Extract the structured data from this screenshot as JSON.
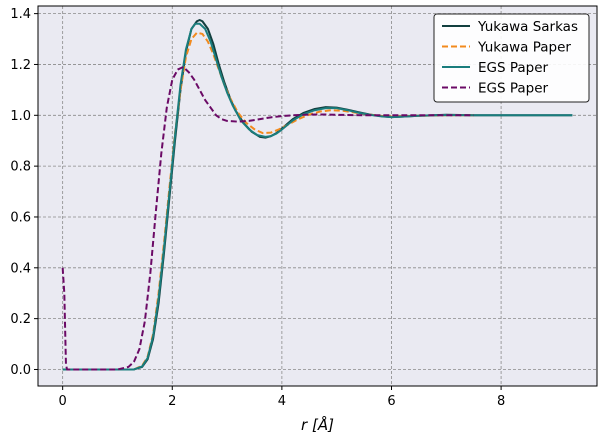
{
  "chart_data": {
    "type": "line",
    "title": "",
    "xlabel": "r [Å]",
    "ylabel": "",
    "xlim": [
      -0.45,
      9.75
    ],
    "ylim": [
      -0.065,
      1.43
    ],
    "xticks": [
      0,
      2,
      4,
      6,
      8
    ],
    "yticks": [
      0.0,
      0.2,
      0.4,
      0.6,
      0.8,
      1.0,
      1.2,
      1.4
    ],
    "grid": true,
    "legend_position": "top-right",
    "background": "#eaeaf2",
    "series": [
      {
        "name": "Yukawa Sarkas",
        "color": "#123f3f",
        "dash": "solid",
        "x": [
          0,
          1.3,
          1.45,
          1.55,
          1.65,
          1.75,
          1.85,
          1.95,
          2.05,
          2.15,
          2.25,
          2.35,
          2.45,
          2.5,
          2.55,
          2.65,
          2.75,
          2.85,
          2.95,
          3.05,
          3.15,
          3.3,
          3.45,
          3.6,
          3.7,
          3.8,
          3.9,
          4.0,
          4.2,
          4.4,
          4.6,
          4.8,
          5.0,
          5.2,
          5.4,
          5.6,
          5.8,
          6.0,
          6.2,
          6.5,
          7.0,
          7.5,
          8.0,
          8.5,
          9.0,
          9.3
        ],
        "y": [
          0.0,
          0.0,
          0.01,
          0.04,
          0.12,
          0.26,
          0.46,
          0.68,
          0.9,
          1.1,
          1.25,
          1.34,
          1.37,
          1.375,
          1.37,
          1.34,
          1.28,
          1.2,
          1.13,
          1.07,
          1.02,
          0.97,
          0.935,
          0.915,
          0.912,
          0.918,
          0.93,
          0.948,
          0.985,
          1.01,
          1.025,
          1.032,
          1.03,
          1.022,
          1.012,
          1.003,
          0.997,
          0.993,
          0.995,
          0.998,
          1.002,
          1.0,
          1.0,
          1.0,
          1.0,
          1.0
        ]
      },
      {
        "name": "Yukawa Paper",
        "color": "#f28a1e",
        "dash": "dashed",
        "x": [
          0,
          1.3,
          1.45,
          1.55,
          1.65,
          1.75,
          1.85,
          1.95,
          2.05,
          2.15,
          2.25,
          2.35,
          2.45,
          2.55,
          2.65,
          2.75,
          2.85,
          2.95,
          3.05,
          3.2,
          3.35,
          3.5,
          3.65,
          3.8,
          3.95,
          4.1,
          4.3,
          4.5,
          4.7,
          4.9,
          5.1,
          5.3,
          5.5,
          5.8,
          6.0,
          6.5,
          7.0,
          7.5
        ],
        "y": [
          0.0,
          0.0,
          0.015,
          0.05,
          0.14,
          0.3,
          0.5,
          0.72,
          0.93,
          1.1,
          1.23,
          1.3,
          1.325,
          1.32,
          1.29,
          1.24,
          1.18,
          1.12,
          1.07,
          1.01,
          0.97,
          0.945,
          0.93,
          0.932,
          0.945,
          0.962,
          0.985,
          1.003,
          1.015,
          1.02,
          1.018,
          1.012,
          1.005,
          0.998,
          0.995,
          0.998,
          1.0,
          1.0
        ]
      },
      {
        "name": "EGS Paper",
        "color": "#1a7d7d",
        "dash": "solid",
        "x": [
          0,
          1.3,
          1.45,
          1.55,
          1.65,
          1.75,
          1.85,
          1.95,
          2.05,
          2.15,
          2.25,
          2.35,
          2.42,
          2.5,
          2.6,
          2.7,
          2.8,
          2.9,
          3.0,
          3.1,
          3.25,
          3.4,
          3.55,
          3.7,
          3.8,
          3.9,
          4.0,
          4.2,
          4.4,
          4.6,
          4.8,
          5.0,
          5.2,
          5.4,
          5.6,
          5.8,
          6.0,
          6.2,
          6.5,
          7.0,
          7.5,
          8.0,
          8.5,
          9.0,
          9.3
        ],
        "y": [
          0.0,
          0.0,
          0.012,
          0.045,
          0.13,
          0.28,
          0.48,
          0.7,
          0.92,
          1.12,
          1.26,
          1.34,
          1.36,
          1.36,
          1.34,
          1.29,
          1.22,
          1.15,
          1.09,
          1.04,
          0.98,
          0.945,
          0.922,
          0.915,
          0.918,
          0.928,
          0.944,
          0.98,
          1.005,
          1.02,
          1.028,
          1.028,
          1.02,
          1.01,
          1.002,
          0.996,
          0.993,
          0.995,
          0.998,
          1.001,
          1.0,
          1.0,
          1.0,
          1.0,
          1.0
        ]
      },
      {
        "name": "EGS Paper",
        "color": "#6b0a66",
        "dash": "dashed",
        "x": [
          0,
          0.03,
          0.06,
          0.08,
          0.3,
          0.6,
          1.0,
          1.2,
          1.3,
          1.4,
          1.5,
          1.6,
          1.7,
          1.8,
          1.9,
          2.0,
          2.1,
          2.2,
          2.3,
          2.4,
          2.5,
          2.6,
          2.7,
          2.8,
          2.9,
          3.0,
          3.2,
          3.4,
          3.6,
          3.8,
          4.0,
          4.2,
          4.4,
          4.6,
          4.8,
          5.0,
          5.5,
          6.0,
          6.5,
          7.0,
          7.5
        ],
        "y": [
          0.4,
          0.3,
          0.02,
          0.0,
          0.0,
          0.0,
          0.0,
          0.01,
          0.03,
          0.08,
          0.19,
          0.38,
          0.62,
          0.85,
          1.03,
          1.14,
          1.18,
          1.19,
          1.17,
          1.14,
          1.1,
          1.06,
          1.03,
          1.0,
          0.985,
          0.978,
          0.975,
          0.978,
          0.985,
          0.992,
          0.997,
          1.0,
          1.002,
          1.003,
          1.003,
          1.002,
          1.0,
          1.0,
          1.0,
          1.0,
          1.0
        ]
      }
    ]
  }
}
